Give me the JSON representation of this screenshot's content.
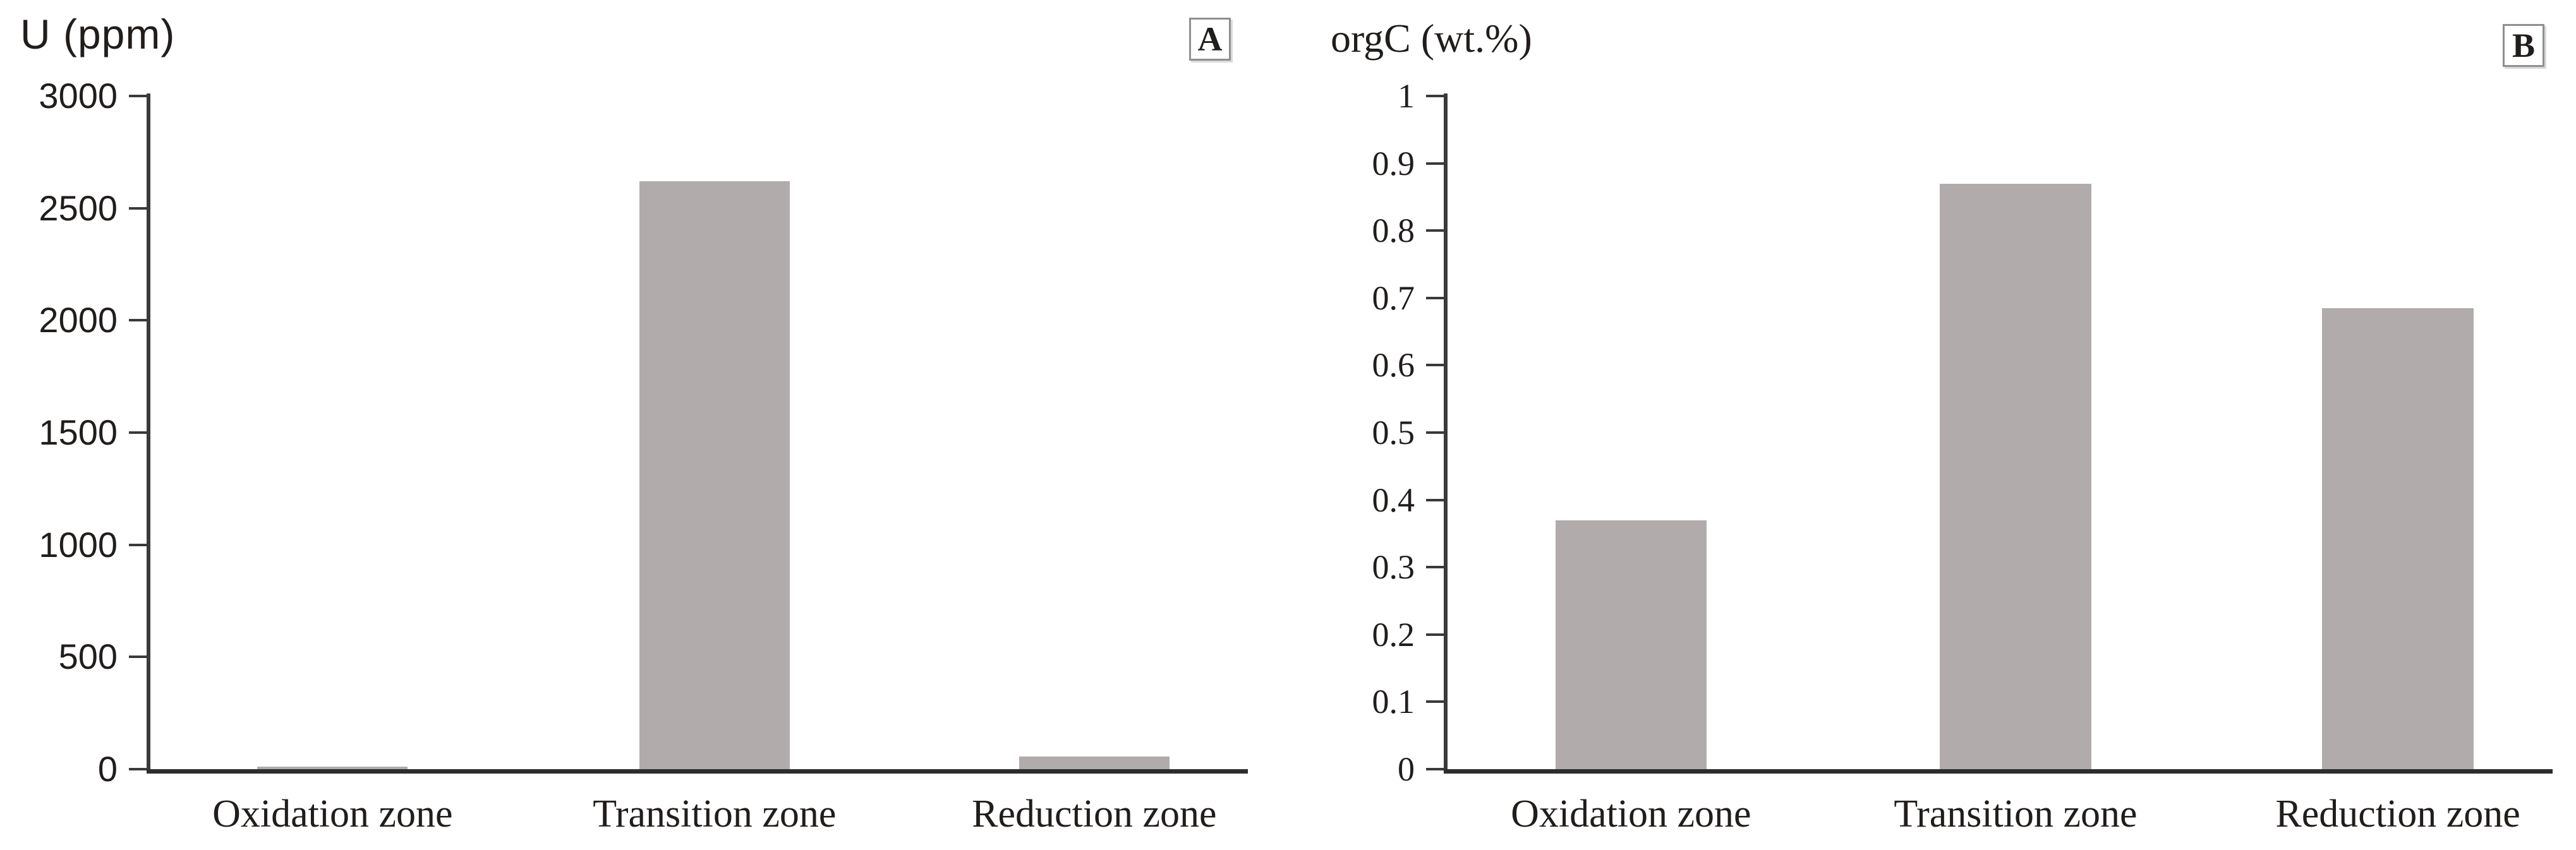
{
  "figure": {
    "background_color": "#ffffff",
    "axis_color": "#3a3a3a",
    "bar_color": "#b1abab",
    "text_color": "#211d1b",
    "panel_labels": [
      "A",
      "B"
    ]
  },
  "chart_data": [
    {
      "type": "bar",
      "panel_label": "A",
      "title": "U (ppm)",
      "xlabel": "",
      "ylabel": "U (ppm)",
      "categories": [
        "Oxidation zone",
        "Transition zone",
        "Reduction zone"
      ],
      "values": [
        10,
        2620,
        55
      ],
      "ylim": [
        0,
        3000
      ],
      "ytick_labels": [
        "3000",
        "2500",
        "2000",
        "1500",
        "1000",
        "500",
        "0"
      ],
      "grid": false,
      "legend": "none",
      "bar_color": "#b1abab"
    },
    {
      "type": "bar",
      "panel_label": "B",
      "title": "orgC (wt.%)",
      "xlabel": "",
      "ylabel": "orgC (wt.%)",
      "categories": [
        "Oxidation zone",
        "Transition zone",
        "Reduction zone"
      ],
      "values": [
        0.37,
        0.87,
        0.685
      ],
      "ylim": [
        0,
        1
      ],
      "ytick_labels": [
        "1",
        "0.9",
        "0.8",
        "0.7",
        "0.6",
        "0.5",
        "0.4",
        "0.3",
        "0.2",
        "0.1",
        "0"
      ],
      "grid": false,
      "legend": "none",
      "bar_color": "#b1abab"
    }
  ]
}
